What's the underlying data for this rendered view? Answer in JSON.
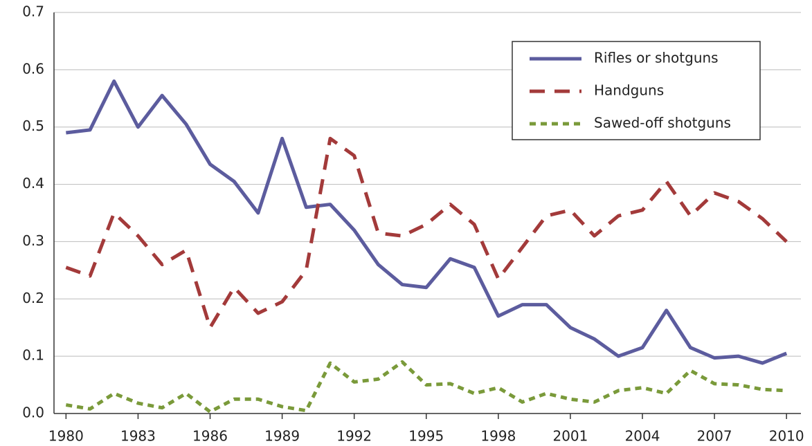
{
  "chart_data": {
    "type": "line",
    "x": [
      1980,
      1981,
      1982,
      1983,
      1984,
      1985,
      1986,
      1987,
      1988,
      1989,
      1990,
      1991,
      1992,
      1993,
      1994,
      1995,
      1996,
      1997,
      1998,
      1999,
      2000,
      2001,
      2002,
      2003,
      2004,
      2005,
      2006,
      2007,
      2008,
      2009,
      2010
    ],
    "series": [
      {
        "name": "Rifles or shotguns",
        "color": "#5c5c9e",
        "style": "solid",
        "values": [
          0.49,
          0.495,
          0.58,
          0.5,
          0.555,
          0.505,
          0.435,
          0.405,
          0.35,
          0.48,
          0.36,
          0.365,
          0.32,
          0.26,
          0.225,
          0.22,
          0.27,
          0.255,
          0.17,
          0.19,
          0.19,
          0.15,
          0.13,
          0.1,
          0.115,
          0.18,
          0.115,
          0.097,
          0.1,
          0.088,
          0.105
        ]
      },
      {
        "name": "Handguns",
        "color": "#a33a3a",
        "style": "dashed",
        "values": [
          0.255,
          0.24,
          0.35,
          0.31,
          0.26,
          0.285,
          0.15,
          0.22,
          0.175,
          0.195,
          0.25,
          0.48,
          0.45,
          0.315,
          0.31,
          0.33,
          0.365,
          0.33,
          0.235,
          0.29,
          0.345,
          0.355,
          0.31,
          0.345,
          0.355,
          0.405,
          0.345,
          0.385,
          0.37,
          0.34,
          0.3
        ]
      },
      {
        "name": "Sawed-off shotguns",
        "color": "#7a9a3a",
        "style": "dotted",
        "values": [
          0.015,
          0.008,
          0.035,
          0.018,
          0.01,
          0.035,
          0.003,
          0.025,
          0.025,
          0.012,
          0.005,
          0.088,
          0.055,
          0.06,
          0.09,
          0.05,
          0.052,
          0.035,
          0.045,
          0.02,
          0.035,
          0.025,
          0.02,
          0.04,
          0.045,
          0.035,
          0.075,
          0.052,
          0.05,
          0.042,
          0.04
        ]
      }
    ],
    "xlim": [
      1979.5,
      2010.6
    ],
    "xticks": [
      1980,
      1983,
      1986,
      1989,
      1992,
      1995,
      1998,
      2001,
      2004,
      2007,
      2010
    ],
    "ylim": [
      0,
      0.7
    ],
    "yticks": [
      {
        "value": 0,
        "label": "0.0"
      },
      0.1,
      0.2,
      0.3,
      0.4,
      0.5,
      0.6,
      0.7
    ],
    "grid": true,
    "legend": "upper right"
  }
}
